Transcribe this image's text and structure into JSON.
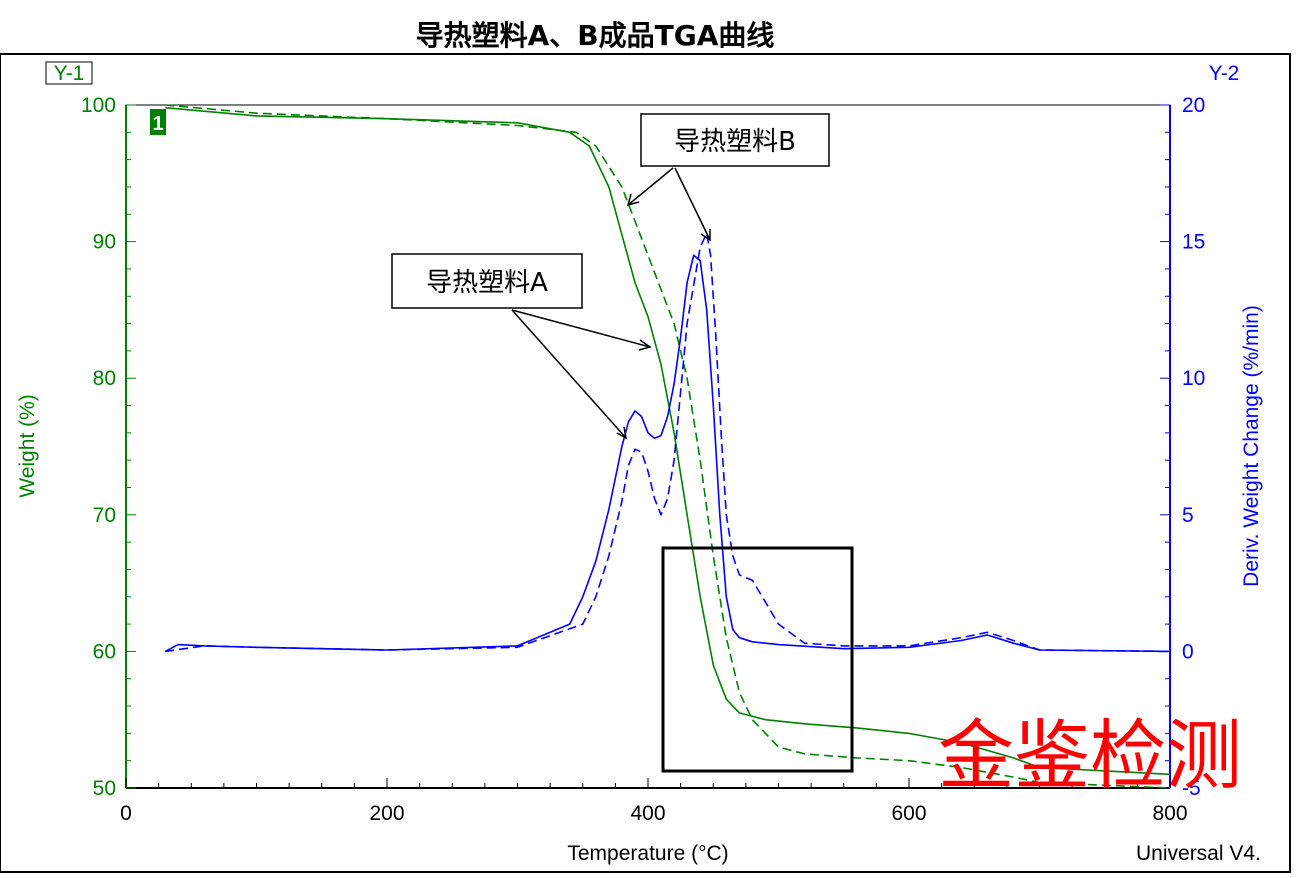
{
  "chart_data": {
    "type": "line",
    "title": "导热塑料A、B成品TGA曲线",
    "xlabel": "Temperature (°C)",
    "ylabel": "Weight (%)",
    "y2label": "Deriv. Weight Change (%/min)",
    "xlim": [
      0,
      800
    ],
    "ylim": [
      50,
      100
    ],
    "y2lim": [
      -5,
      20
    ],
    "x_ticks": [
      "0",
      "200",
      "400",
      "600",
      "800"
    ],
    "y_ticks": [
      "50",
      "60",
      "70",
      "80",
      "90",
      "100"
    ],
    "y2_ticks": [
      "-5",
      "0",
      "5",
      "10",
      "15",
      "20"
    ],
    "y1_axis_tag": "Y-1",
    "y2_axis_tag": "Y-2",
    "curve_marker": "1",
    "footer_label": "Universal V4.",
    "grid": false,
    "colors": {
      "weight": "#008000",
      "deriv": "#0000ff",
      "y1_axis": "#008000",
      "y2_axis": "#0000ff"
    },
    "series": [
      {
        "axis": "y1",
        "style": "solid",
        "x": [
          30,
          100,
          200,
          300,
          340,
          355,
          370,
          380,
          390,
          400,
          410,
          420,
          430,
          440,
          450,
          460,
          470,
          490,
          520,
          560,
          600,
          640,
          680,
          700,
          800
        ],
        "y": [
          99.8,
          99.2,
          99.0,
          98.7,
          98.0,
          97.0,
          94.0,
          90.5,
          87.0,
          84.5,
          81.0,
          76.0,
          70.0,
          64.0,
          59.0,
          56.5,
          55.5,
          55.0,
          54.7,
          54.4,
          54.0,
          53.3,
          52.2,
          51.5,
          51.0
        ]
      },
      {
        "axis": "y1",
        "style": "dashed",
        "x": [
          30,
          100,
          200,
          300,
          345,
          360,
          380,
          390,
          400,
          410,
          420,
          430,
          440,
          450,
          460,
          470,
          480,
          500,
          520,
          560,
          600,
          640,
          680,
          700,
          800
        ],
        "y": [
          100.0,
          99.4,
          99.0,
          98.5,
          98.0,
          97.0,
          94.0,
          91.5,
          89.0,
          86.5,
          84.0,
          80.0,
          74.0,
          67.0,
          61.0,
          57.0,
          55.0,
          53.0,
          52.5,
          52.2,
          52.0,
          51.5,
          50.8,
          50.4,
          50.0
        ]
      },
      {
        "axis": "y2",
        "style": "solid",
        "x": [
          30,
          40,
          60,
          100,
          200,
          300,
          340,
          350,
          360,
          370,
          380,
          385,
          390,
          395,
          400,
          405,
          410,
          415,
          420,
          425,
          430,
          435,
          440,
          445,
          450,
          455,
          460,
          465,
          470,
          480,
          500,
          550,
          600,
          640,
          660,
          680,
          700,
          800
        ],
        "y": [
          0.0,
          0.25,
          0.2,
          0.15,
          0.05,
          0.2,
          1.0,
          2.0,
          3.3,
          5.2,
          7.5,
          8.4,
          8.8,
          8.6,
          8.0,
          7.8,
          7.9,
          8.6,
          9.8,
          11.5,
          13.5,
          14.5,
          14.3,
          12.5,
          9.0,
          5.0,
          2.0,
          0.8,
          0.5,
          0.35,
          0.25,
          0.1,
          0.15,
          0.4,
          0.6,
          0.3,
          0.05,
          0.0
        ]
      },
      {
        "axis": "y2",
        "style": "dashed",
        "x": [
          30,
          60,
          100,
          200,
          300,
          350,
          360,
          370,
          380,
          385,
          390,
          395,
          400,
          405,
          410,
          415,
          420,
          425,
          430,
          440,
          445,
          448,
          452,
          456,
          460,
          465,
          470,
          480,
          490,
          500,
          520,
          550,
          600,
          640,
          660,
          680,
          700,
          800
        ],
        "y": [
          0.0,
          0.2,
          0.15,
          0.05,
          0.15,
          1.0,
          2.0,
          3.5,
          5.5,
          6.8,
          7.4,
          7.3,
          6.6,
          5.6,
          5.0,
          5.6,
          7.0,
          9.5,
          12.0,
          14.8,
          15.3,
          14.5,
          11.5,
          8.0,
          5.0,
          3.5,
          2.8,
          2.6,
          1.8,
          1.0,
          0.3,
          0.2,
          0.2,
          0.5,
          0.7,
          0.4,
          0.05,
          0.0
        ]
      }
    ],
    "annotations": [
      {
        "text": "导热塑料B"
      },
      {
        "text": "导热塑料A"
      }
    ],
    "watermark": "金鉴检测"
  }
}
